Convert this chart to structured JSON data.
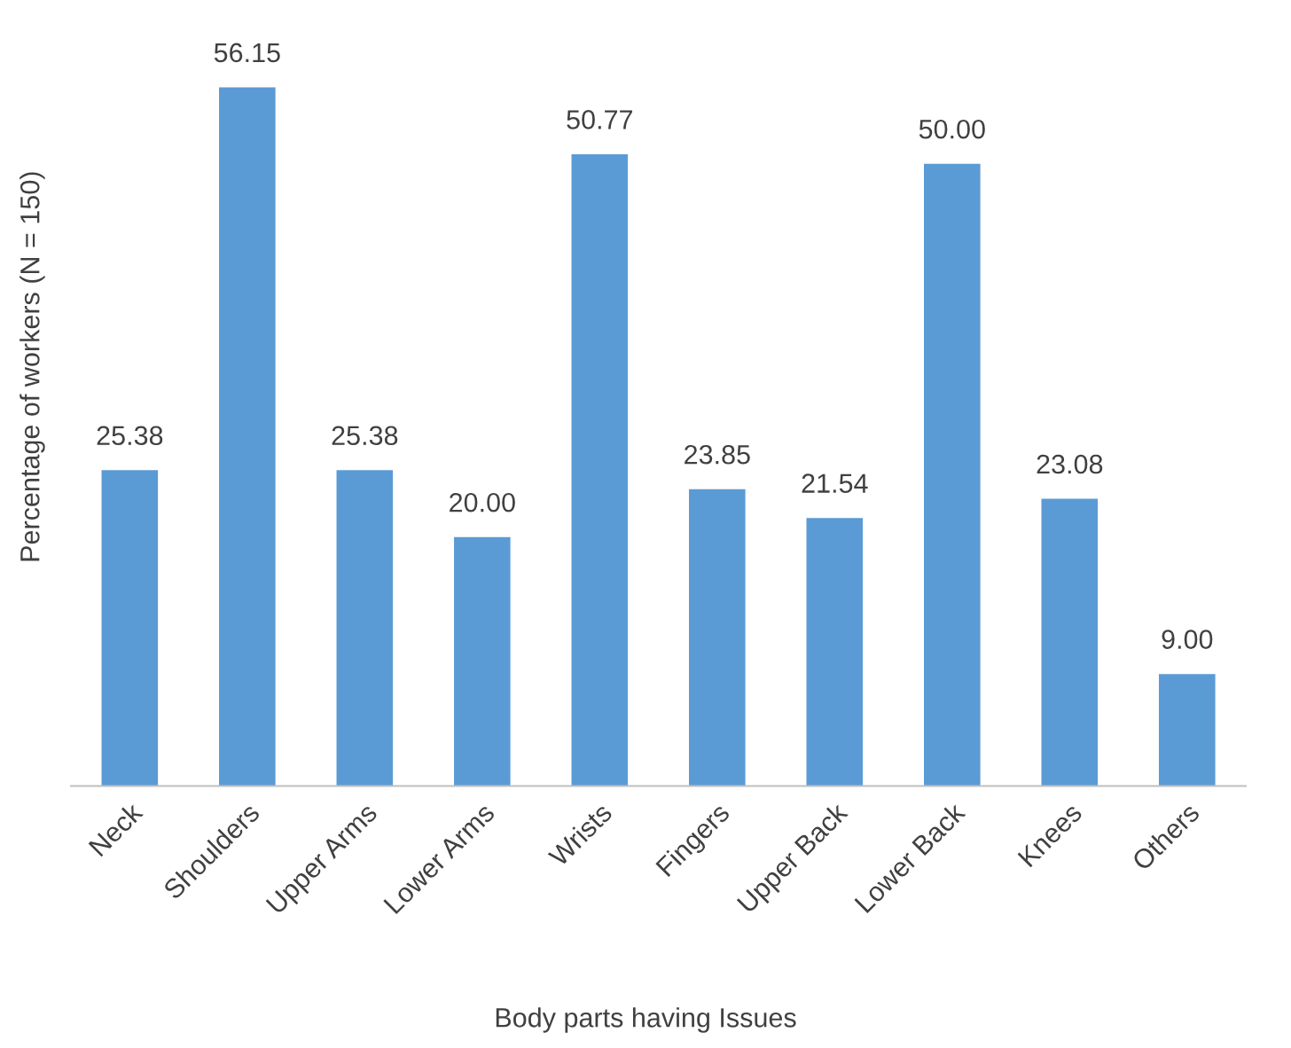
{
  "chart_data": {
    "type": "bar",
    "categories": [
      "Neck",
      "Shoulders",
      "Upper Arms",
      "Lower Arms",
      "Wrists",
      "Fingers",
      "Upper Back",
      "Lower Back",
      "Knees",
      "Others"
    ],
    "values": [
      25.38,
      56.15,
      25.38,
      20.0,
      50.77,
      23.85,
      21.54,
      50.0,
      23.08,
      9.0
    ],
    "value_labels": [
      "25.38",
      "56.15",
      "25.38",
      "20.00",
      "50.77",
      "23.85",
      "21.54",
      "50.00",
      "23.08",
      "9.00"
    ],
    "color": "#5b9bd5",
    "xlabel": "Body parts having Issues",
    "ylabel": "Percentage of workers (N = 150)",
    "tick_labels": "x",
    "grid": false,
    "legend": false
  }
}
